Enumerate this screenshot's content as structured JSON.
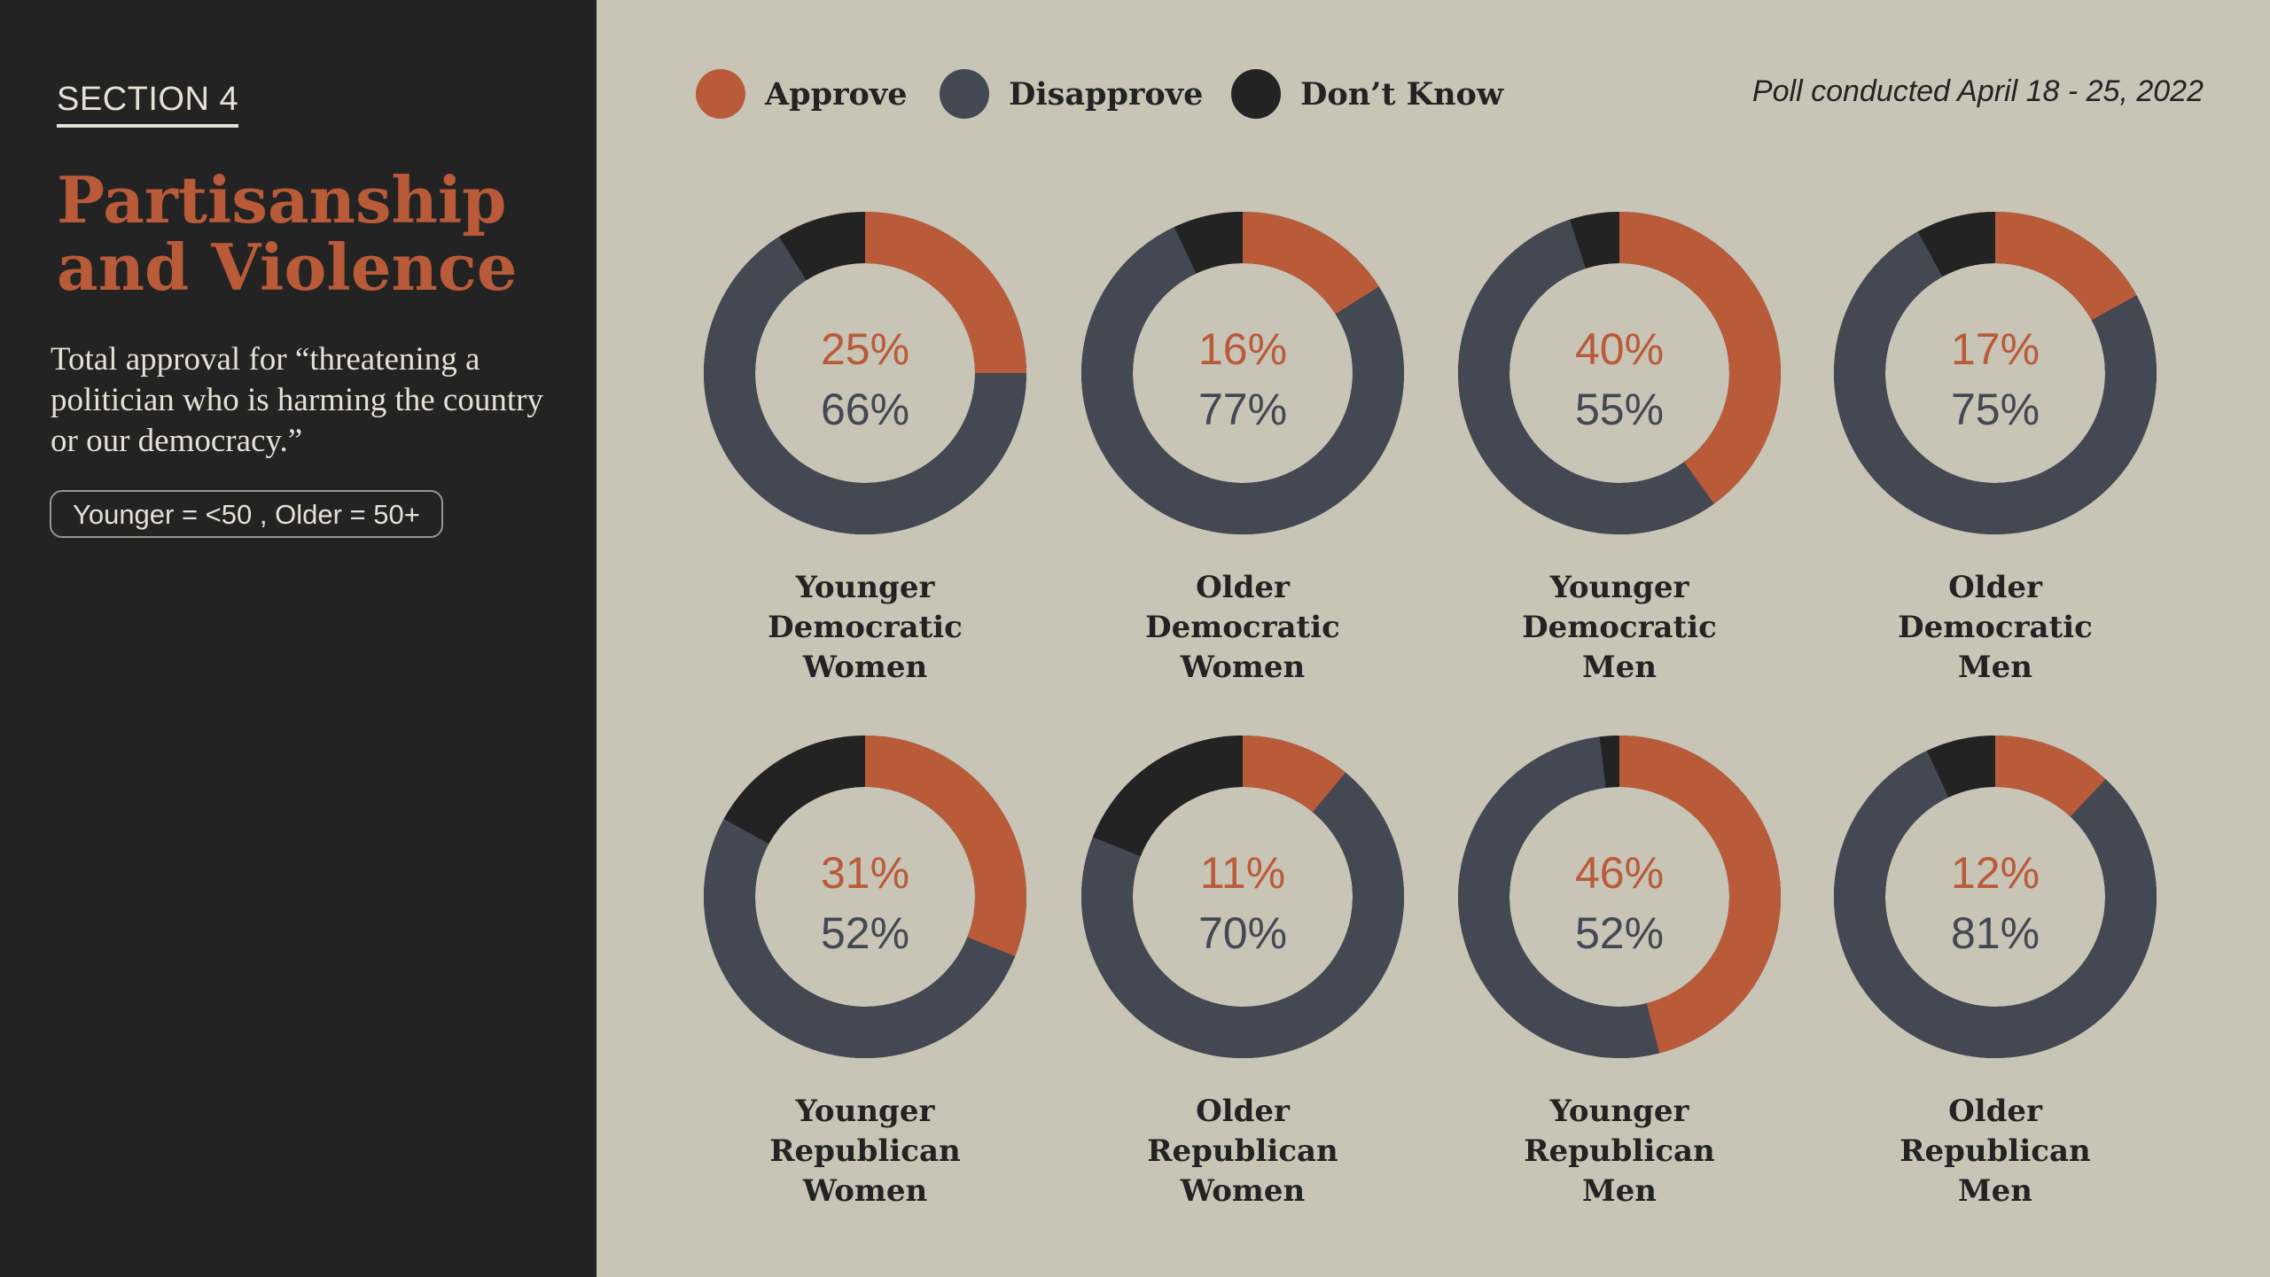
{
  "section_label": "SECTION 4",
  "title_line1": "Partisanship",
  "title_line2": "and Violence",
  "subtitle": "Total approval for “threatening a politician who is harming the country or our democracy.”",
  "age_note": "Younger = <50 , Older = 50+",
  "poll_date": "Poll conducted April 18 - 25, 2022",
  "legend": [
    {
      "label": "Approve",
      "color": "#b95a39"
    },
    {
      "label": "Disapprove",
      "color": "#434852"
    },
    {
      "label": "Don’t Know",
      "color": "#232323"
    }
  ],
  "colors": {
    "approve": "#b95a39",
    "disapprove": "#434852",
    "dont_know": "#232323",
    "background": "#c8c4b6",
    "sidebar": "#232323"
  },
  "chart_data": {
    "type": "donut",
    "series_order": [
      "Approve",
      "Disapprove",
      "Don’t Know"
    ],
    "charts": [
      {
        "label": [
          "Younger",
          "Democratic",
          "Women"
        ],
        "approve": 25,
        "disapprove": 66,
        "approve_label": "25%",
        "disapprove_label": "66%"
      },
      {
        "label": [
          "Older",
          "Democratic",
          "Women"
        ],
        "approve": 16,
        "disapprove": 77,
        "approve_label": "16%",
        "disapprove_label": "77%"
      },
      {
        "label": [
          "Younger",
          "Democratic",
          "Men"
        ],
        "approve": 40,
        "disapprove": 55,
        "approve_label": "40%",
        "disapprove_label": "55%"
      },
      {
        "label": [
          "Older",
          "Democratic",
          "Men"
        ],
        "approve": 17,
        "disapprove": 75,
        "approve_label": "17%",
        "disapprove_label": "75%"
      },
      {
        "label": [
          "Younger",
          "Republican",
          "Women"
        ],
        "approve": 31,
        "disapprove": 52,
        "approve_label": "31%",
        "disapprove_label": "52%"
      },
      {
        "label": [
          "Older",
          "Republican",
          "Women"
        ],
        "approve": 11,
        "disapprove": 70,
        "approve_label": "11%",
        "disapprove_label": "70%"
      },
      {
        "label": [
          "Younger",
          "Republican",
          "Men"
        ],
        "approve": 46,
        "disapprove": 52,
        "approve_label": "46%",
        "disapprove_label": "52%"
      },
      {
        "label": [
          "Older",
          "Republican",
          "Men"
        ],
        "approve": 12,
        "disapprove": 81,
        "approve_label": "12%",
        "disapprove_label": "81%"
      }
    ]
  }
}
